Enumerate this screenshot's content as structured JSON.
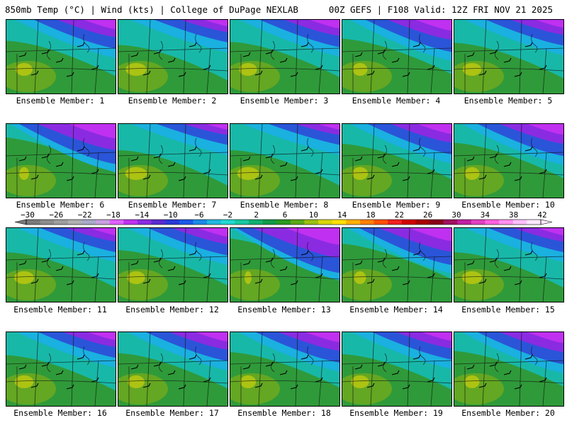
{
  "header": {
    "left_title": "850mb Temp (°C) | Wind (kts) | College of DuPage NEXLAB",
    "right_title": "00Z GEFS | F108 Valid: 12Z FRI NOV 21 2025"
  },
  "members": [
    {
      "label": "Ensemble Member: 1",
      "cold": 0.35
    },
    {
      "label": "Ensemble Member: 2",
      "cold": 0.15
    },
    {
      "label": "Ensemble Member: 3",
      "cold": 0.3
    },
    {
      "label": "Ensemble Member: 4",
      "cold": 0.45
    },
    {
      "label": "Ensemble Member: 5",
      "cold": 0.25
    },
    {
      "label": "Ensemble Member: 6",
      "cold": 0.7
    },
    {
      "label": "Ensemble Member: 7",
      "cold": 0.1
    },
    {
      "label": "Ensemble Member: 8",
      "cold": 0.1
    },
    {
      "label": "Ensemble Member: 9",
      "cold": 0.4
    },
    {
      "label": "Ensemble Member: 10",
      "cold": 0.45
    },
    {
      "label": "Ensemble Member: 11",
      "cold": 0.2
    },
    {
      "label": "Ensemble Member: 12",
      "cold": 0.3
    },
    {
      "label": "Ensemble Member: 13",
      "cold": 0.85
    },
    {
      "label": "Ensemble Member: 14",
      "cold": 0.6
    },
    {
      "label": "Ensemble Member: 15",
      "cold": 0.2
    },
    {
      "label": "Ensemble Member: 16",
      "cold": 0.25
    },
    {
      "label": "Ensemble Member: 17",
      "cold": 0.35
    },
    {
      "label": "Ensemble Member: 18",
      "cold": 0.4
    },
    {
      "label": "Ensemble Member: 19",
      "cold": 0.3
    },
    {
      "label": "Ensemble Member: 20",
      "cold": 0.45
    }
  ],
  "colorbar": {
    "labels": [
      "−30",
      "−26",
      "−22",
      "−18",
      "−14",
      "−10",
      "−6",
      "−2",
      "2",
      "6",
      "10",
      "14",
      "18",
      "22",
      "26",
      "30",
      "34",
      "38",
      "42"
    ],
    "colors": [
      "#7a7a7a",
      "#8c8c8c",
      "#9e9e9e",
      "#b0b0b0",
      "#a8a8c8",
      "#c8a0e0",
      "#e060ff",
      "#c030f0",
      "#8a2be2",
      "#5a2ad0",
      "#2a3ad8",
      "#1a5ae8",
      "#1a8ae8",
      "#20b8e0",
      "#20d8d0",
      "#18c8a0",
      "#10b070",
      "#109a48",
      "#2a9a20",
      "#5aa818",
      "#9ac010",
      "#d8d800",
      "#ffe000",
      "#ffb000",
      "#ff8000",
      "#ff5000",
      "#f02020",
      "#d00000",
      "#a80000",
      "#880018",
      "#a01060",
      "#c020a0",
      "#e040c0",
      "#ff60e0",
      "#ff90f0",
      "#ffc0ff",
      "#ffe8ff"
    ]
  }
}
